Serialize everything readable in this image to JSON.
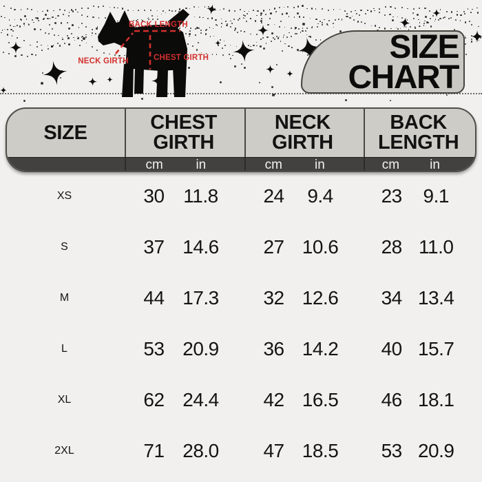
{
  "title": {
    "line1": "SIZE",
    "line2": "CHART"
  },
  "diagram": {
    "back_length_label": "BACK LENGTH",
    "neck_girth_label": "NECK GIRTH",
    "chest_girth_label": "CHEST GIRTH"
  },
  "table": {
    "header": {
      "size": "SIZE",
      "groups": [
        {
          "line1": "CHEST",
          "line2": "GIRTH"
        },
        {
          "line1": "NECK",
          "line2": "GIRTH"
        },
        {
          "line1": "BACK",
          "line2": "LENGTH"
        }
      ],
      "unit_cm": "cm",
      "unit_in": "in"
    },
    "rows": [
      {
        "size": "XS",
        "variant": "light",
        "values": [
          "30",
          "11.8",
          "24",
          "9.4",
          "23",
          "9.1"
        ]
      },
      {
        "size": "S",
        "variant": "dark",
        "values": [
          "37",
          "14.6",
          "27",
          "10.6",
          "28",
          "11.0"
        ]
      },
      {
        "size": "M",
        "variant": "light",
        "values": [
          "44",
          "17.3",
          "32",
          "12.6",
          "34",
          "13.4"
        ]
      },
      {
        "size": "L",
        "variant": "gray",
        "values": [
          "53",
          "20.9",
          "36",
          "14.2",
          "40",
          "15.7"
        ]
      },
      {
        "size": "XL",
        "variant": "light",
        "values": [
          "62",
          "24.4",
          "42",
          "16.5",
          "46",
          "18.1"
        ]
      },
      {
        "size": "2XL",
        "variant": "dark",
        "values": [
          "71",
          "28.0",
          "47",
          "18.5",
          "53",
          "20.9"
        ]
      }
    ]
  },
  "colors": {
    "accent_red": "#d2302c",
    "page_bg": "#f1f0ee",
    "header_bg": "#cdccc7",
    "units_bar": "#434140",
    "dark_row": "#53514b",
    "gray_row": "#c6c5c0",
    "badge_bg": "#ffffff",
    "text": "#141413"
  },
  "chart_data": {
    "type": "table",
    "title": "SIZE CHART",
    "columns": [
      "SIZE",
      "CHEST GIRTH (cm)",
      "CHEST GIRTH (in)",
      "NECK GIRTH (cm)",
      "NECK GIRTH (in)",
      "BACK LENGTH (cm)",
      "BACK LENGTH (in)"
    ],
    "rows": [
      [
        "XS",
        30,
        11.8,
        24,
        9.4,
        23,
        9.1
      ],
      [
        "S",
        37,
        14.6,
        27,
        10.6,
        28,
        11.0
      ],
      [
        "M",
        44,
        17.3,
        32,
        12.6,
        34,
        13.4
      ],
      [
        "L",
        53,
        20.9,
        36,
        14.2,
        40,
        15.7
      ],
      [
        "XL",
        62,
        24.4,
        42,
        16.5,
        46,
        18.1
      ],
      [
        "2XL",
        71,
        28.0,
        47,
        18.5,
        53,
        20.9
      ]
    ]
  }
}
